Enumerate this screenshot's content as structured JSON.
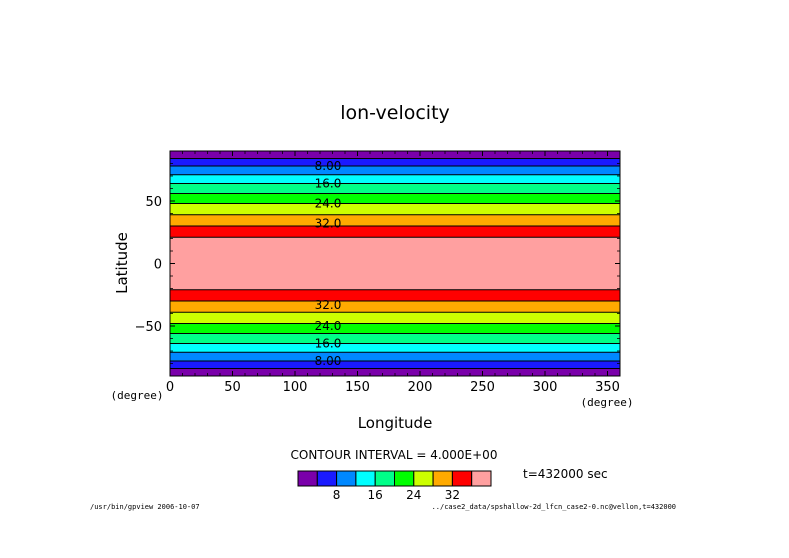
{
  "chart_data": {
    "type": "heatmap",
    "title": "lon-velocity",
    "xlabel": "Longitude",
    "ylabel": "Latitude",
    "x_unit": "(degree)",
    "y_unit": "(degree)",
    "xlim": [
      0,
      360
    ],
    "ylim": [
      -90,
      90
    ],
    "x_ticks": [
      "0",
      "50",
      "100",
      "150",
      "200",
      "250",
      "300",
      "350"
    ],
    "y_ticks": [
      "50",
      "0",
      "−50"
    ],
    "bands": [
      {
        "lat_min": 84,
        "lat_max": 90,
        "color": "#7a00aa"
      },
      {
        "lat_min": 78,
        "lat_max": 84,
        "color": "#1a1aff"
      },
      {
        "lat_min": 71,
        "lat_max": 78,
        "color": "#0088ff"
      },
      {
        "lat_min": 64,
        "lat_max": 71,
        "color": "#00ffff"
      },
      {
        "lat_min": 56,
        "lat_max": 64,
        "color": "#00ff88"
      },
      {
        "lat_min": 48,
        "lat_max": 56,
        "color": "#00ff00"
      },
      {
        "lat_min": 39,
        "lat_max": 48,
        "color": "#ccff00"
      },
      {
        "lat_min": 30,
        "lat_max": 39,
        "color": "#ffaa00"
      },
      {
        "lat_min": 21,
        "lat_max": 30,
        "color": "#ff0000"
      },
      {
        "lat_min": -21,
        "lat_max": 21,
        "color": "#ffa0a0"
      },
      {
        "lat_min": -30,
        "lat_max": -21,
        "color": "#ff0000"
      },
      {
        "lat_min": -39,
        "lat_max": -30,
        "color": "#ffaa00"
      },
      {
        "lat_min": -48,
        "lat_max": -39,
        "color": "#ccff00"
      },
      {
        "lat_min": -56,
        "lat_max": -48,
        "color": "#00ff00"
      },
      {
        "lat_min": -64,
        "lat_max": -56,
        "color": "#00ff88"
      },
      {
        "lat_min": -71,
        "lat_max": -64,
        "color": "#00ffff"
      },
      {
        "lat_min": -78,
        "lat_max": -71,
        "color": "#0088ff"
      },
      {
        "lat_min": -84,
        "lat_max": -78,
        "color": "#1a1aff"
      },
      {
        "lat_min": -90,
        "lat_max": -84,
        "color": "#7a00aa"
      }
    ],
    "contour_labels": [
      {
        "text": "8.00",
        "lat": 78
      },
      {
        "text": "16.0",
        "lat": 64
      },
      {
        "text": "24.0",
        "lat": 48
      },
      {
        "text": "32.0",
        "lat": 32
      },
      {
        "text": "32.0",
        "lat": -33
      },
      {
        "text": "24.0",
        "lat": -50
      },
      {
        "text": "16.0",
        "lat": -64
      },
      {
        "text": "8.00",
        "lat": -78
      }
    ],
    "contour_interval": "CONTOUR INTERVAL = 4.000E+00",
    "time_label": "t=432000 sec",
    "colorbar": {
      "colors": [
        "#7a00aa",
        "#1a1aff",
        "#0088ff",
        "#00ffff",
        "#00ff88",
        "#00ff00",
        "#ccff00",
        "#ffaa00",
        "#ff0000",
        "#ffa0a0"
      ],
      "labels": [
        {
          "text": "8",
          "boundary": 2
        },
        {
          "text": "16",
          "boundary": 4
        },
        {
          "text": "24",
          "boundary": 6
        },
        {
          "text": "32",
          "boundary": 8
        }
      ]
    }
  },
  "footer": {
    "left": "/usr/bin/gpview  2006-10-07",
    "right": "../case2_data/spshallow-2d_lfcn_case2-0.nc@vellon,t=432000"
  }
}
